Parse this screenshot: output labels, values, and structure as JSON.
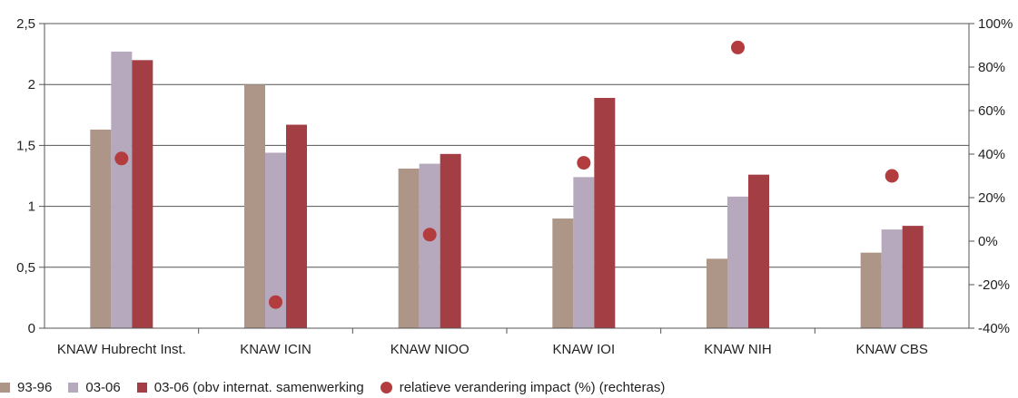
{
  "chart_data": {
    "type": "bar",
    "categories": [
      "KNAW Hubrecht Inst.",
      "KNAW ICIN",
      "KNAW NIOO",
      "KNAW IOI",
      "KNAW NIH",
      "KNAW CBS"
    ],
    "series": [
      {
        "name": "93-96",
        "type": "bar",
        "axis": "left",
        "color": "#ad9587",
        "values": [
          1.63,
          2.0,
          1.31,
          0.9,
          0.57,
          0.62
        ]
      },
      {
        "name": "03-06",
        "type": "bar",
        "axis": "left",
        "color": "#b7a9bd",
        "values": [
          2.27,
          1.44,
          1.35,
          1.24,
          1.08,
          0.81
        ]
      },
      {
        "name": "03-06 (obv internat. samenwerking",
        "type": "bar",
        "axis": "left",
        "color": "#a33f44",
        "values": [
          2.2,
          1.67,
          1.43,
          1.89,
          1.26,
          0.84
        ]
      },
      {
        "name": "relatieve verandering impact (%) (rechteras)",
        "type": "scatter",
        "axis": "right",
        "color": "#b23c3e",
        "values": [
          38,
          -28,
          3,
          36,
          89,
          30
        ]
      }
    ],
    "ylim": [
      0,
      2.5
    ],
    "yticks": [
      "0",
      "0,5",
      "1",
      "1,5",
      "2",
      "2,5"
    ],
    "y2lim": [
      -40,
      100
    ],
    "y2ticks": [
      "-40%",
      "-20%",
      "0%",
      "20%",
      "40%",
      "60%",
      "80%",
      "100%"
    ],
    "grid": true,
    "legend_position": "bottom-left"
  }
}
